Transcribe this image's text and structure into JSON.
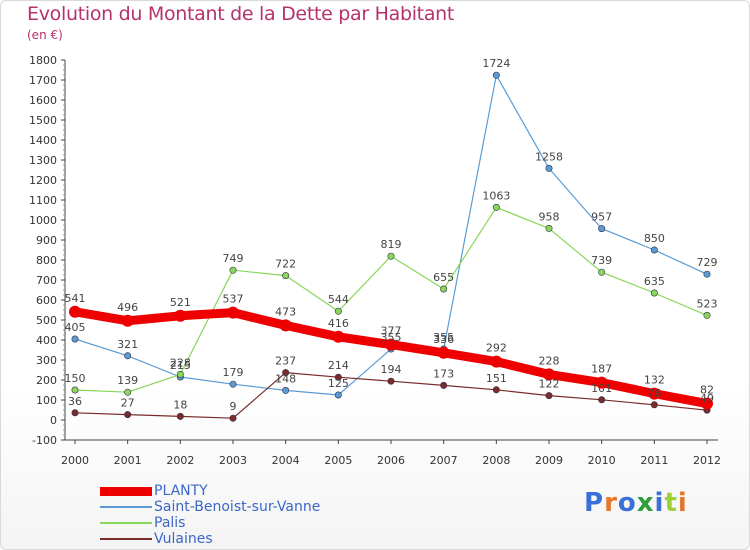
{
  "title": "Evolution du Montant de la Dette par Habitant",
  "subtitle": "(en €)",
  "logo": {
    "text": "Proxiti",
    "colors": [
      "#3a6fd8",
      "#e8762a",
      "#3a6fd8",
      "#2e9e3a",
      "#3a6fd8",
      "#9ad13a",
      "#e8762a"
    ]
  },
  "chart_data": {
    "type": "line",
    "x": [
      "2000",
      "2001",
      "2002",
      "2003",
      "2004",
      "2005",
      "2006",
      "2007",
      "2008",
      "2009",
      "2010",
      "2011",
      "2012"
    ],
    "ylim": [
      -100,
      1800
    ],
    "yticks": [
      "-100",
      "0",
      "100",
      "200",
      "300",
      "400",
      "500",
      "600",
      "700",
      "800",
      "900",
      "1000",
      "1100",
      "1200",
      "1300",
      "1400",
      "1500",
      "1600",
      "1700",
      "1800"
    ],
    "grid": false,
    "legend_position": "bottom-left",
    "series": [
      {
        "name": "PLANTY",
        "color": "#ee0000",
        "width": 9,
        "values": [
          541,
          496,
          521,
          537,
          473,
          416,
          377,
          336,
          292,
          228,
          187,
          132,
          82
        ],
        "labels": [
          "541",
          "496",
          "521",
          "537",
          "473",
          "416",
          "377",
          "336",
          "292",
          "228",
          "187",
          "132",
          "82"
        ]
      },
      {
        "name": "Saint-Benoist-sur-Vanne",
        "color": "#5b9bd5",
        "width": 1.2,
        "values": [
          405,
          321,
          215,
          179,
          148,
          125,
          355,
          355,
          1724,
          1258,
          957,
          850,
          729
        ],
        "labels": [
          "405",
          "321",
          "215",
          "179",
          "148",
          "125",
          "355",
          "355",
          "1724",
          "1258",
          "957",
          "850",
          "729"
        ]
      },
      {
        "name": "Palis",
        "color": "#88d65a",
        "width": 1.2,
        "values": [
          150,
          139,
          228,
          749,
          722,
          544,
          819,
          655,
          1063,
          958,
          739,
          635,
          523
        ],
        "labels": [
          "150",
          "139",
          "228",
          "749",
          "722",
          "544",
          "819",
          "655",
          "1063",
          "958",
          "739",
          "635",
          "523"
        ]
      },
      {
        "name": "Vulaines",
        "color": "#7a2b2b",
        "width": 1.2,
        "values": [
          36,
          27,
          18,
          9,
          237,
          214,
          194,
          173,
          151,
          122,
          101,
          76,
          49
        ],
        "labels": [
          "36",
          "27",
          "18",
          "9",
          "237",
          "214",
          "194",
          "173",
          "151",
          "122",
          "101",
          "76",
          "49"
        ]
      }
    ]
  }
}
